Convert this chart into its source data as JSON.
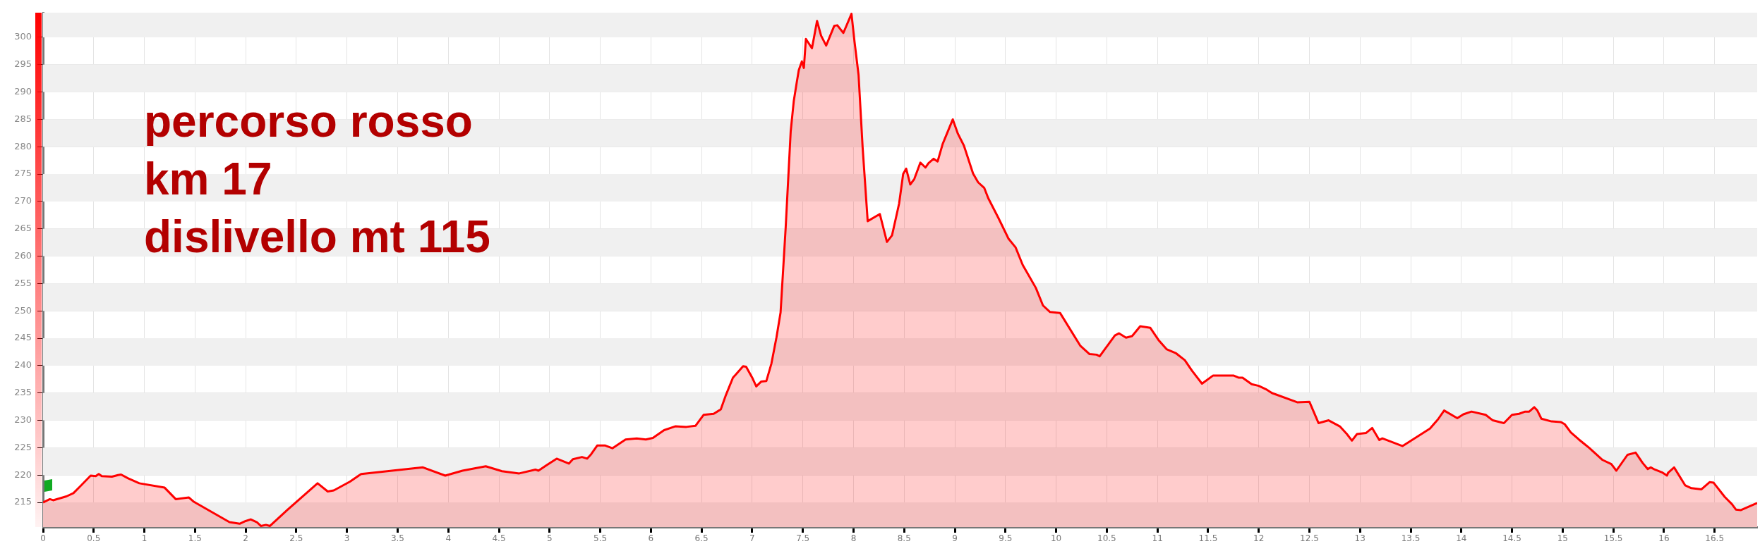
{
  "chart_data": {
    "type": "area",
    "annotations": [
      "percorso rosso",
      "km 17",
      "dislivello mt 115"
    ],
    "x": [
      0,
      0.067,
      0.1,
      0.23,
      0.3,
      0.37,
      0.47,
      0.52,
      0.55,
      0.58,
      0.68,
      0.74,
      0.77,
      0.84,
      0.95,
      1.2,
      1.31,
      1.44,
      1.49,
      1.84,
      1.94,
      2.0,
      2.05,
      2.11,
      2.15,
      2.2,
      2.24,
      2.41,
      2.71,
      2.81,
      2.87,
      3.03,
      3.14,
      3.75,
      3.97,
      4.14,
      4.37,
      4.53,
      4.7,
      4.86,
      4.89,
      4.97,
      5.07,
      5.19,
      5.23,
      5.32,
      5.37,
      5.41,
      5.47,
      5.55,
      5.62,
      5.75,
      5.86,
      5.95,
      6.02,
      6.13,
      6.24,
      6.35,
      6.44,
      6.52,
      6.57,
      6.62,
      6.69,
      6.74,
      6.81,
      6.84,
      6.91,
      6.94,
      7.0,
      7.04,
      7.09,
      7.14,
      7.19,
      7.24,
      7.28,
      7.33,
      7.38,
      7.41,
      7.44,
      7.46,
      7.49,
      7.51,
      7.53,
      7.59,
      7.64,
      7.68,
      7.73,
      7.81,
      7.84,
      7.9,
      7.98,
      8.01,
      8.05,
      8.09,
      8.14,
      8.26,
      8.33,
      8.38,
      8.45,
      8.49,
      8.52,
      8.56,
      8.6,
      8.66,
      8.71,
      8.74,
      8.79,
      8.83,
      8.88,
      8.98,
      9.03,
      9.09,
      9.18,
      9.23,
      9.29,
      9.33,
      9.43,
      9.53,
      9.6,
      9.67,
      9.72,
      9.8,
      9.87,
      9.94,
      10.04,
      10.24,
      10.33,
      10.4,
      10.43,
      10.58,
      10.62,
      10.69,
      10.75,
      10.83,
      10.93,
      11.01,
      11.09,
      11.18,
      11.27,
      11.34,
      11.44,
      11.55,
      11.75,
      11.8,
      11.84,
      11.93,
      12.0,
      12.07,
      12.13,
      12.38,
      12.5,
      12.59,
      12.69,
      12.8,
      12.87,
      12.92,
      12.97,
      13.06,
      13.12,
      13.19,
      13.22,
      13.42,
      13.69,
      13.77,
      13.83,
      13.96,
      14.02,
      14.1,
      14.24,
      14.31,
      14.42,
      14.5,
      14.57,
      14.63,
      14.67,
      14.72,
      14.75,
      14.79,
      14.89,
      14.98,
      15.02,
      15.08,
      15.16,
      15.22,
      15.26,
      15.39,
      15.48,
      15.53,
      15.64,
      15.72,
      15.79,
      15.84,
      15.87,
      15.91,
      15.98,
      16.03,
      16.04,
      16.1,
      16.21,
      16.27,
      16.37,
      16.45,
      16.49,
      16.6,
      16.67,
      16.71,
      16.76,
      16.92
    ],
    "series": [
      {
        "color": "#ff0000",
        "values": [
          215,
          215.6,
          215.4,
          216.1,
          216.7,
          218,
          219.9,
          219.8,
          220.2,
          219.8,
          219.7,
          220,
          220.1,
          219.4,
          218.5,
          217.7,
          215.6,
          215.9,
          215.1,
          211.4,
          211.1,
          211.6,
          211.9,
          211.4,
          210.7,
          210.9,
          210.7,
          213.6,
          218.5,
          217,
          217.2,
          218.8,
          220.2,
          221.4,
          219.9,
          220.8,
          221.6,
          220.7,
          220.3,
          221,
          220.8,
          221.8,
          223,
          222.1,
          222.9,
          223.3,
          223,
          223.8,
          225.4,
          225.4,
          224.9,
          226.5,
          226.7,
          226.5,
          226.8,
          228.2,
          228.9,
          228.8,
          229,
          231,
          231.1,
          231.2,
          232,
          234.6,
          237.8,
          238.4,
          239.9,
          239.8,
          237.8,
          236.2,
          237.1,
          237.2,
          240.4,
          245.2,
          249.7,
          265.1,
          282.8,
          288.3,
          291.8,
          294,
          295.6,
          294.4,
          299.7,
          298,
          303,
          300.3,
          298.5,
          302.1,
          302.2,
          300.8,
          304.3,
          299.2,
          293.1,
          279.9,
          266.4,
          267.7,
          262.6,
          263.8,
          269.6,
          275,
          276,
          273.1,
          274.1,
          277.1,
          276.2,
          277,
          277.8,
          277.3,
          280.5,
          285,
          282.4,
          280.2,
          275.1,
          273.5,
          272.5,
          270.6,
          267,
          263.2,
          261.6,
          258.4,
          256.8,
          254.2,
          251,
          249.8,
          249.6,
          243.6,
          242.1,
          242,
          241.7,
          245.5,
          245.9,
          245.1,
          245.4,
          247.2,
          246.9,
          244.7,
          243,
          242.3,
          241,
          239.1,
          236.7,
          238.2,
          238.2,
          237.8,
          237.8,
          236.6,
          236.3,
          235.7,
          235,
          233.3,
          233.4,
          229.5,
          230,
          228.9,
          227.5,
          226.3,
          227.5,
          227.7,
          228.6,
          226.4,
          226.7,
          225.3,
          228.5,
          230.2,
          231.8,
          230.4,
          231.1,
          231.6,
          231,
          230,
          229.5,
          231,
          231.2,
          231.6,
          231.6,
          232.4,
          231.8,
          230.3,
          229.8,
          229.7,
          229.3,
          227.8,
          226.5,
          225.6,
          225,
          222.8,
          222,
          220.8,
          223.7,
          224.1,
          222.2,
          221.1,
          221.4,
          221,
          220.5,
          219.9,
          220.4,
          221.4,
          218.1,
          217.6,
          217.4,
          218.7,
          218.6,
          216,
          214.7,
          213.7,
          213.6,
          214.9
        ]
      }
    ],
    "xlim": [
      0,
      16.92
    ],
    "xticks": [
      0,
      0.5,
      1,
      1.5,
      2,
      2.5,
      3,
      3.5,
      4,
      4.5,
      5,
      5.5,
      6,
      6.5,
      7,
      7.5,
      8,
      8.5,
      9,
      9.5,
      10,
      10.5,
      11,
      11.5,
      12,
      12.5,
      13,
      13.5,
      14,
      14.5,
      15,
      15.5,
      16,
      16.5
    ],
    "ylim": [
      210.5,
      304.5
    ],
    "yticks": [
      215,
      220,
      225,
      230,
      235,
      240,
      245,
      250,
      255,
      260,
      265,
      270,
      275,
      280,
      285,
      290,
      295,
      300
    ],
    "grid": true,
    "marker": "none",
    "line_style": "solid"
  }
}
